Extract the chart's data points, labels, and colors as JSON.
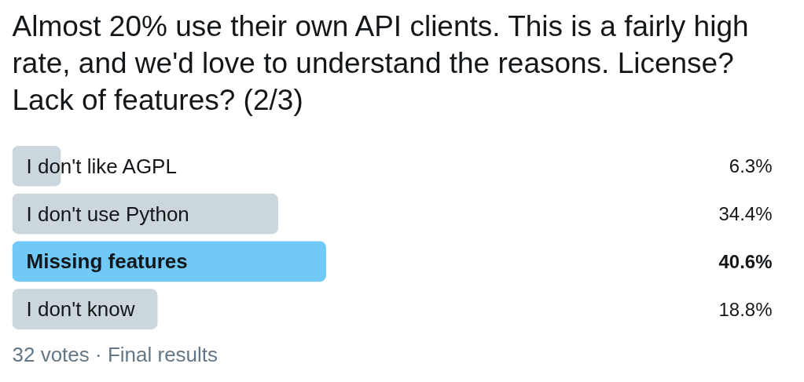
{
  "chart_data": {
    "type": "bar",
    "orientation": "horizontal",
    "title": "Almost 20% use their own API clients. This is a fairly high rate, and we'd love to understand the reasons. License? Lack of features?  (2/3)",
    "categories": [
      "I don't like AGPL",
      "I don't use Python",
      "Missing features",
      "I don't know"
    ],
    "values": [
      6.3,
      34.4,
      40.6,
      18.8
    ],
    "value_labels": [
      "6.3%",
      "34.4%",
      "40.6%",
      "18.8%"
    ],
    "colors": [
      "#ccd6dd",
      "#ccd6dd",
      "#71c9f8",
      "#ccd6dd"
    ],
    "tick_labels": "y",
    "annotations": [
      "32 votes · Final results"
    ]
  }
}
